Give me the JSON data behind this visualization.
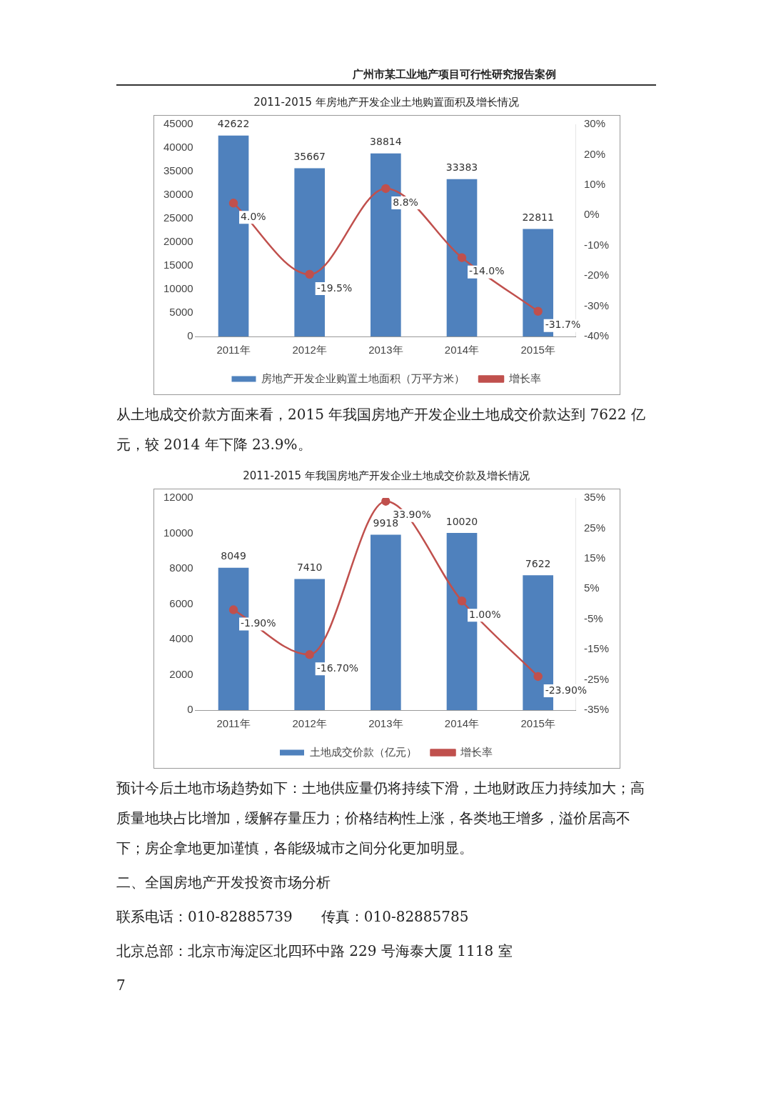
{
  "chart_data": [
    {
      "type": "bar",
      "title": "2011-2015 年房地产开发企业土地购置面积及增长情况",
      "categories": [
        "2011年",
        "2012年",
        "2013年",
        "2014年",
        "2015年"
      ],
      "series": [
        {
          "name": "房地产开发企业购置土地面积（万平方米）",
          "color": "#4f81bd",
          "values": [
            42622,
            35667,
            38814,
            33383,
            22811
          ],
          "value_labels": [
            "42622",
            "35667",
            "38814",
            "33383",
            "22811"
          ]
        },
        {
          "name": "增长率",
          "type": "line",
          "axis": "y2",
          "color": "#c0504d",
          "values": [
            4.0,
            -19.5,
            8.8,
            -14.0,
            -31.7
          ],
          "value_labels": [
            "4.0%",
            "-19.5%",
            "8.8%",
            "-14.0%",
            "-31.7%"
          ]
        }
      ],
      "ylim": [
        0,
        45000
      ],
      "yticks": [
        0,
        5000,
        10000,
        15000,
        20000,
        25000,
        30000,
        35000,
        40000,
        45000
      ],
      "y2lim": [
        -40,
        30
      ],
      "y2ticks": [
        {
          "value": -40,
          "label": "-40%"
        },
        {
          "value": -30,
          "label": "-30%"
        },
        {
          "value": -20,
          "label": "-20%"
        },
        {
          "value": -10,
          "label": "-10%"
        },
        {
          "value": 0,
          "label": "0%"
        },
        {
          "value": 10,
          "label": "10%"
        },
        {
          "value": 20,
          "label": "20%"
        },
        {
          "value": 30,
          "label": "30%"
        }
      ],
      "grid": false,
      "legend": "bottom",
      "marker": "circle",
      "annotations": [
        "广州市某工业地产项目可行性研究报告案例",
        "从土地成交价款方面来看，2015 年我国房地产开发企业土地成交价款达到 7622 亿元，较 2014 年下降 23.9%。"
      ]
    },
    {
      "type": "bar",
      "title": "2011-2015 年我国房地产开发企业土地成交价款及增长情况",
      "categories": [
        "2011年",
        "2012年",
        "2013年",
        "2014年",
        "2015年"
      ],
      "series": [
        {
          "name": "土地成交价款（亿元）",
          "color": "#4f81bd",
          "values": [
            8049,
            7410,
            9918,
            10020,
            7622
          ],
          "value_labels": [
            "8049",
            "7410",
            "9918",
            "10020",
            "7622"
          ]
        },
        {
          "name": "增长率",
          "type": "line",
          "axis": "y2",
          "color": "#c0504d",
          "values": [
            -1.9,
            -16.7,
            33.9,
            1.0,
            -23.9
          ],
          "value_labels": [
            "-1.90%",
            "-16.70%",
            "33.90%",
            "1.00%",
            "-23.90%"
          ]
        }
      ],
      "ylim": [
        0,
        12000
      ],
      "yticks": [
        0,
        2000,
        4000,
        6000,
        8000,
        10000,
        12000
      ],
      "y2lim": [
        -35,
        35
      ],
      "y2ticks": [
        {
          "value": -35,
          "label": "-35%"
        },
        {
          "value": -25,
          "label": "-25%"
        },
        {
          "value": -15,
          "label": "-15%"
        },
        {
          "value": -5,
          "label": "-5%"
        },
        {
          "value": 5,
          "label": "5%"
        },
        {
          "value": 15,
          "label": "15%"
        },
        {
          "value": 25,
          "label": "25%"
        },
        {
          "value": 35,
          "label": "35%"
        }
      ],
      "grid": false,
      "legend": "bottom",
      "marker": "circle",
      "annotations": [
        "预计今后土地市场趋势如下：土地供应量仍将持续下滑，土地财政压力持续加大；高质量地块占比增加，缓解存量压力；价格结构性上涨，各类地王增多，溢价居高不下；房企拿地更加谨慎，各能级城市之间分化更加明显。",
        "二、全国房地产开发投资市场分析",
        "联系电话：010-82885739　　传真：010-82885785",
        "北京总部：北京市海淀区北四环中路 229 号海泰大厦 1118 室",
        "7"
      ]
    }
  ]
}
